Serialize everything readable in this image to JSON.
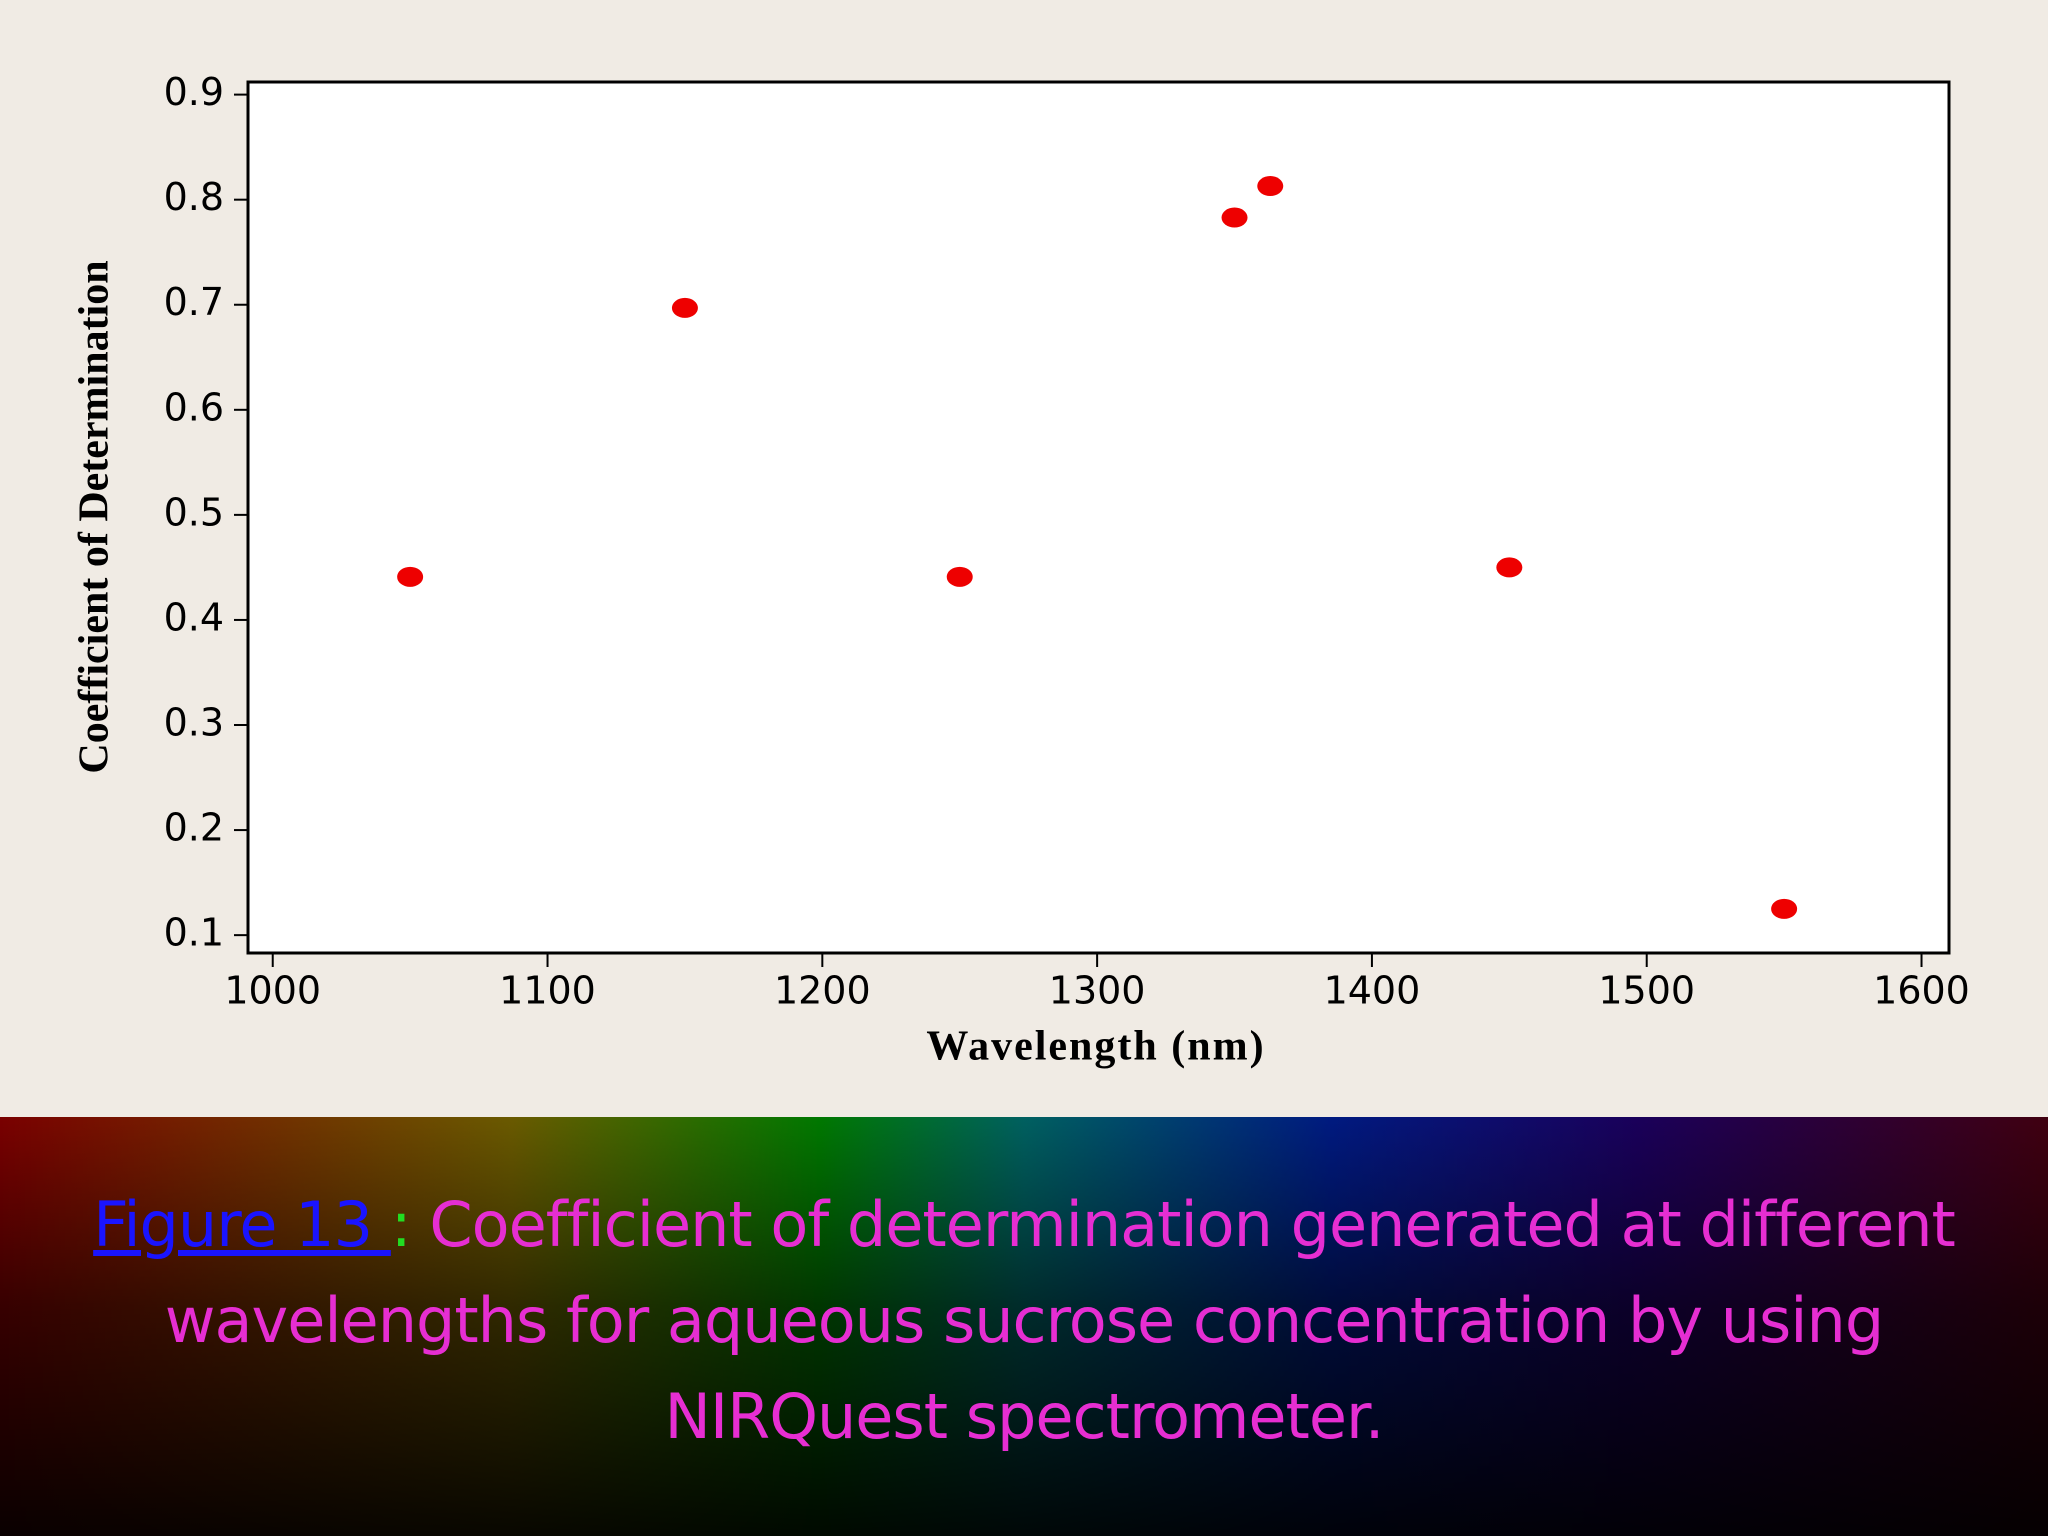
{
  "chart_data": {
    "type": "scatter",
    "x_label": "Wavelength (nm)",
    "y_label": "Coefficient of Determination",
    "x": [
      1050,
      1150,
      1250,
      1350,
      1363,
      1450,
      1550
    ],
    "y": [
      0.441,
      0.697,
      0.441,
      0.783,
      0.813,
      0.45,
      0.125
    ],
    "color": "#ee0000",
    "xlim": [
      991,
      1610
    ],
    "ylim": [
      0.083,
      0.912
    ],
    "xticks": [
      1000,
      1100,
      1200,
      1300,
      1400,
      1500,
      1600
    ],
    "yticks": [
      0.1,
      0.2,
      0.3,
      0.4,
      0.5,
      0.6,
      0.7,
      0.8,
      0.9
    ],
    "grid": false
  },
  "caption": {
    "label": "Figure 13 ",
    "separator": ":",
    "text": "Coefficient of determination generated at different wavelengths for aqueous sucrose concentration by using NIRQuest spectrometer."
  }
}
